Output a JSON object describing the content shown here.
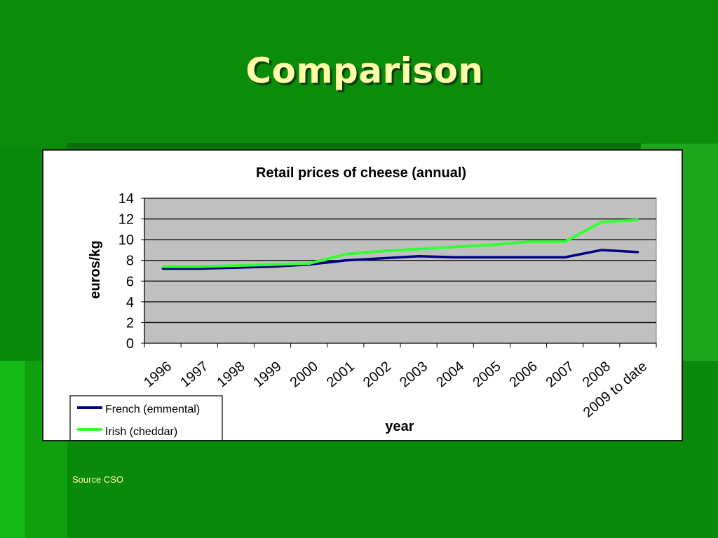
{
  "slide": {
    "title": "Comparison",
    "source": "Source CSO"
  },
  "colors": {
    "background": "#0a8a0a",
    "title": "#ffffa8",
    "plot_area": "#c0c0c0",
    "french": "#000080",
    "irish": "#33ff33"
  },
  "chart_data": {
    "type": "line",
    "title": "Retail prices of cheese (annual)",
    "xlabel": "year",
    "ylabel": "euros/kg",
    "ylim": [
      0,
      14
    ],
    "yticks": [
      0,
      2,
      4,
      6,
      8,
      10,
      12,
      14
    ],
    "grid": true,
    "legend_position": "bottom-left",
    "categories": [
      "1996",
      "1997",
      "1998",
      "1999",
      "2000",
      "2001",
      "2002",
      "2003",
      "2004",
      "2005",
      "2006",
      "2007",
      "2008",
      "2009 to date"
    ],
    "series": [
      {
        "name": "French (emmental)",
        "color": "#000080",
        "values": [
          7.2,
          7.2,
          7.3,
          7.4,
          7.6,
          8.0,
          8.2,
          8.4,
          8.3,
          8.3,
          8.3,
          8.3,
          9.0,
          8.8
        ]
      },
      {
        "name": "Irish (cheddar)",
        "color": "#33ff33",
        "values": [
          7.4,
          7.4,
          7.5,
          7.6,
          7.7,
          8.6,
          8.9,
          9.1,
          9.3,
          9.5,
          9.8,
          9.8,
          11.7,
          11.9
        ]
      }
    ]
  }
}
